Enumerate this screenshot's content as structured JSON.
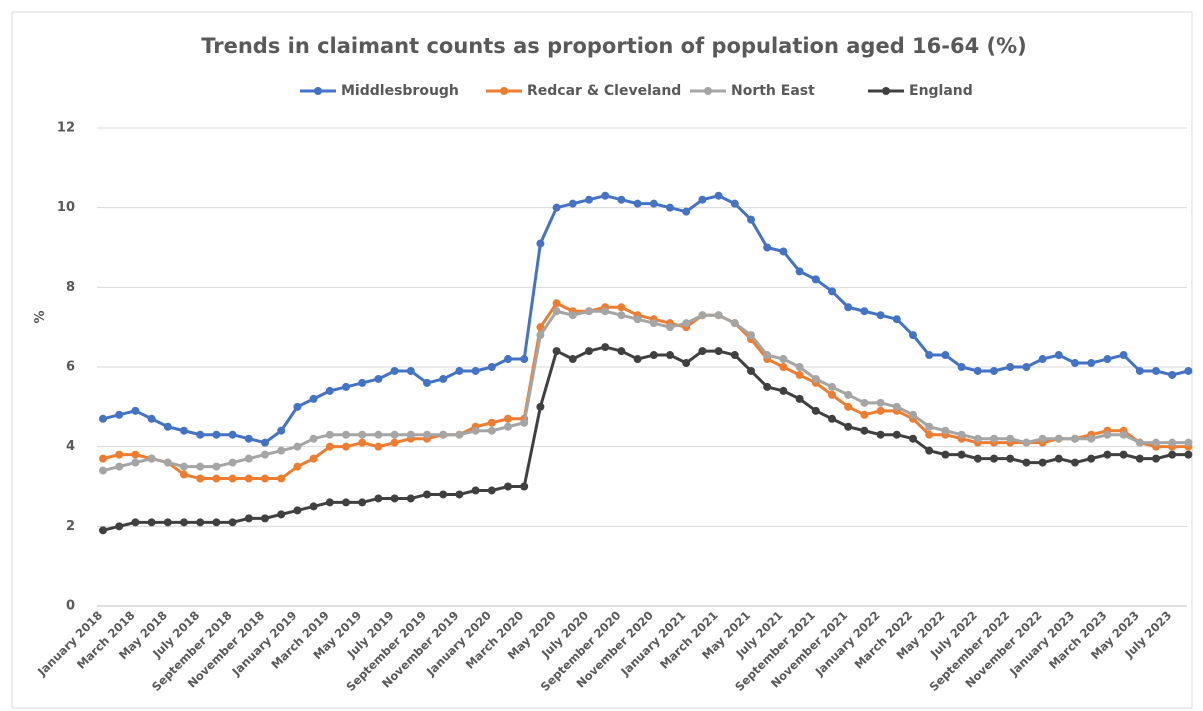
{
  "chart_data": {
    "type": "line",
    "title": "Trends in claimant counts as proportion of population aged 16-64 (%)",
    "y_label": "%",
    "categories": [
      "January 2018",
      null,
      "March 2018",
      null,
      "May 2018",
      null,
      "July 2018",
      null,
      "September 2018",
      null,
      "November 2018",
      null,
      "January 2019",
      null,
      "March 2019",
      null,
      "May 2019",
      null,
      "July 2019",
      null,
      "September 2019",
      null,
      "November 2019",
      null,
      "January 2020",
      null,
      "March 2020",
      null,
      "May 2020",
      null,
      "July 2020",
      null,
      "September 2020",
      null,
      "November 2020",
      null,
      "January 2021",
      null,
      "March 2021",
      null,
      "May 2021",
      null,
      "July 2021",
      null,
      "September 2021",
      null,
      "November 2021",
      null,
      "January 2022",
      null,
      "March 2022",
      null,
      "May 2022",
      null,
      "July 2022",
      null,
      "September 2022",
      null,
      "November 2022",
      null,
      "January 2023",
      null,
      "March 2023",
      null,
      "May 2023",
      null,
      "July 2023",
      null
    ],
    "series": [
      {
        "name": "Middlesbrough",
        "color": "#4472c4",
        "values": [
          4.7,
          4.8,
          4.9,
          4.7,
          4.5,
          4.4,
          4.3,
          4.3,
          4.3,
          4.2,
          4.1,
          4.4,
          5.0,
          5.2,
          5.4,
          5.5,
          5.6,
          5.7,
          5.9,
          5.9,
          5.6,
          5.7,
          5.9,
          5.9,
          6.0,
          6.2,
          6.2,
          9.1,
          10.0,
          10.1,
          10.2,
          10.3,
          10.2,
          10.1,
          10.1,
          10.0,
          9.9,
          10.2,
          10.3,
          10.1,
          9.7,
          9.0,
          8.9,
          8.4,
          8.2,
          7.9,
          7.5,
          7.4,
          7.3,
          7.2,
          6.8,
          6.3,
          6.3,
          6.0,
          5.9,
          5.9,
          6.0,
          6.0,
          6.2,
          6.3,
          6.1,
          6.1,
          6.2,
          6.3,
          5.9,
          5.9,
          5.8,
          5.9
        ]
      },
      {
        "name": "Redcar & Cleveland",
        "color": "#ed7d31",
        "values": [
          3.7,
          3.8,
          3.8,
          3.7,
          3.6,
          3.3,
          3.2,
          3.2,
          3.2,
          3.2,
          3.2,
          3.2,
          3.5,
          3.7,
          4.0,
          4.0,
          4.1,
          4.0,
          4.1,
          4.2,
          4.2,
          4.3,
          4.3,
          4.5,
          4.6,
          4.7,
          4.7,
          7.0,
          7.6,
          7.4,
          7.4,
          7.5,
          7.5,
          7.3,
          7.2,
          7.1,
          7.0,
          7.3,
          7.3,
          7.1,
          6.7,
          6.2,
          6.0,
          5.8,
          5.6,
          5.3,
          5.0,
          4.8,
          4.9,
          4.9,
          4.7,
          4.3,
          4.3,
          4.2,
          4.1,
          4.1,
          4.1,
          4.1,
          4.1,
          4.2,
          4.2,
          4.3,
          4.4,
          4.4,
          4.1,
          4.0,
          4.0,
          4.0
        ]
      },
      {
        "name": "North East",
        "color": "#a5a5a5",
        "values": [
          3.4,
          3.5,
          3.6,
          3.7,
          3.6,
          3.5,
          3.5,
          3.5,
          3.6,
          3.7,
          3.8,
          3.9,
          4.0,
          4.2,
          4.3,
          4.3,
          4.3,
          4.3,
          4.3,
          4.3,
          4.3,
          4.3,
          4.3,
          4.4,
          4.4,
          4.5,
          4.6,
          6.8,
          7.4,
          7.3,
          7.4,
          7.4,
          7.3,
          7.2,
          7.1,
          7.0,
          7.1,
          7.3,
          7.3,
          7.1,
          6.8,
          6.3,
          6.2,
          6.0,
          5.7,
          5.5,
          5.3,
          5.1,
          5.1,
          5.0,
          4.8,
          4.5,
          4.4,
          4.3,
          4.2,
          4.2,
          4.2,
          4.1,
          4.2,
          4.2,
          4.2,
          4.2,
          4.3,
          4.3,
          4.1,
          4.1,
          4.1,
          4.1
        ]
      },
      {
        "name": "England",
        "color": "#404040",
        "values": [
          1.9,
          2.0,
          2.1,
          2.1,
          2.1,
          2.1,
          2.1,
          2.1,
          2.1,
          2.2,
          2.2,
          2.3,
          2.4,
          2.5,
          2.6,
          2.6,
          2.6,
          2.7,
          2.7,
          2.7,
          2.8,
          2.8,
          2.8,
          2.9,
          2.9,
          3.0,
          3.0,
          5.0,
          6.4,
          6.2,
          6.4,
          6.5,
          6.4,
          6.2,
          6.3,
          6.3,
          6.1,
          6.4,
          6.4,
          6.3,
          5.9,
          5.5,
          5.4,
          5.2,
          4.9,
          4.7,
          4.5,
          4.4,
          4.3,
          4.3,
          4.2,
          3.9,
          3.8,
          3.8,
          3.7,
          3.7,
          3.7,
          3.6,
          3.6,
          3.7,
          3.6,
          3.7,
          3.8,
          3.8,
          3.7,
          3.7,
          3.8,
          3.8
        ]
      }
    ],
    "ylim": [
      0,
      12
    ],
    "yticks": [
      0,
      2,
      4,
      6,
      8,
      10,
      12
    ],
    "grid": true,
    "legend": "top"
  }
}
